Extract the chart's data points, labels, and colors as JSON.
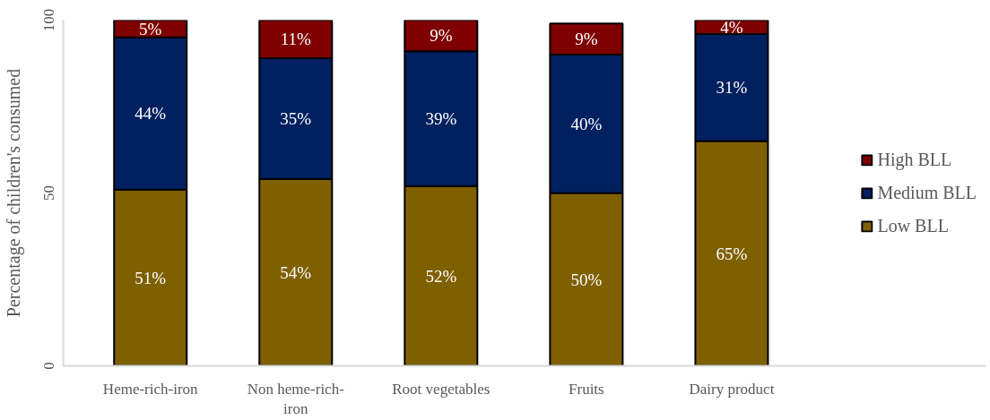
{
  "chart_data": {
    "type": "bar",
    "stacked": true,
    "ylabel": "Percentage of children's consumed",
    "categories": [
      "Heme-rich-iron",
      "Non heme-rich-iron",
      "Root vegetables",
      "Fruits",
      "Dairy product"
    ],
    "series": [
      {
        "name": "Low BLL",
        "color": "#7f6000",
        "values": [
          51,
          54,
          52,
          50,
          65
        ],
        "value_labels": [
          "51%",
          "54%",
          "52%",
          "50%",
          "65%"
        ]
      },
      {
        "name": "Medium BLL",
        "color": "#002060",
        "values": [
          44,
          35,
          39,
          40,
          31
        ],
        "value_labels": [
          "44%",
          "35%",
          "39%",
          "40%",
          "31%"
        ]
      },
      {
        "name": "High BLL",
        "color": "#7f0000",
        "values": [
          5,
          11,
          9,
          9,
          4
        ],
        "value_labels": [
          "5%",
          "11%",
          "9%",
          "9%",
          "4%"
        ]
      }
    ],
    "ylim": [
      0,
      100
    ],
    "yticks": [
      0,
      50,
      100
    ],
    "grid": false,
    "legend": "right"
  }
}
